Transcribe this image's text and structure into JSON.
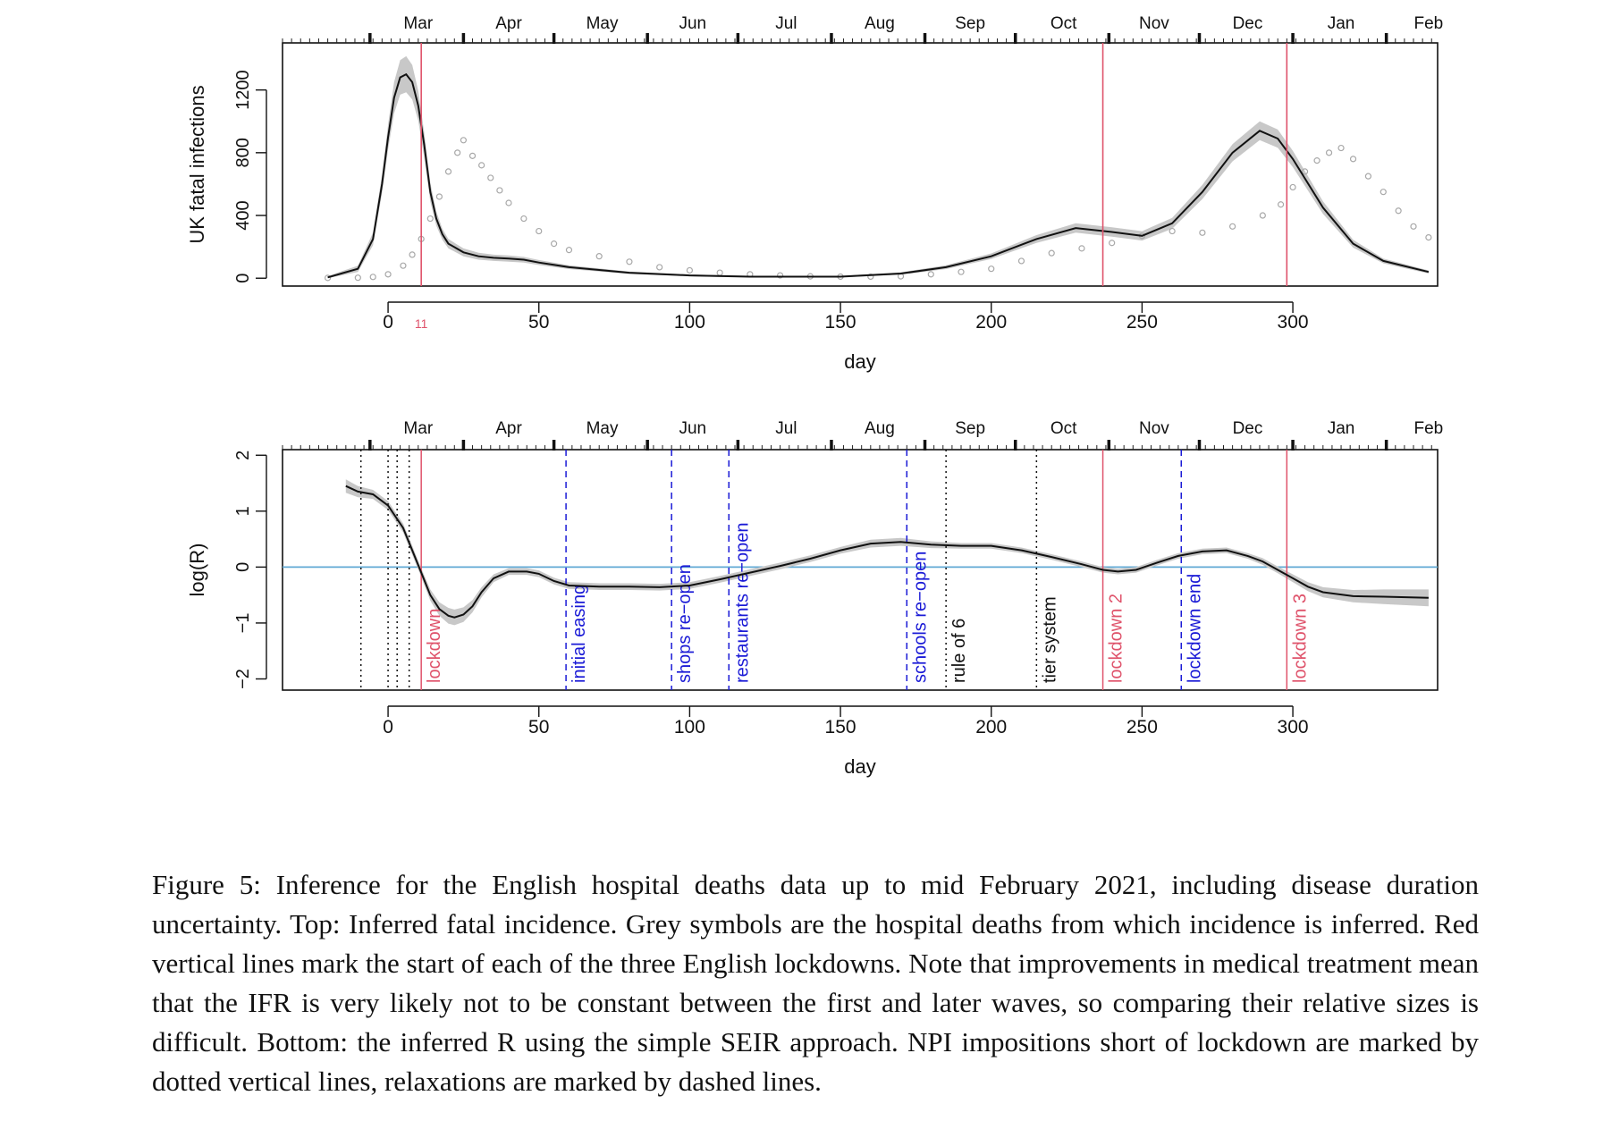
{
  "chart_data": [
    {
      "type": "line",
      "title": "",
      "xlabel": "day",
      "ylabel": "UK fatal infections",
      "xlim": [
        -35,
        348
      ],
      "ylim": [
        -50,
        1500
      ],
      "x_ticks": [
        "0",
        "50",
        "100",
        "150",
        "200",
        "250",
        "300"
      ],
      "y_ticks": [
        "0",
        "400",
        "800",
        "1200"
      ],
      "months": [
        "Mar",
        "Apr",
        "May",
        "Jun",
        "Jul",
        "Aug",
        "Sep",
        "Oct",
        "Nov",
        "Dec",
        "Jan",
        "Feb"
      ],
      "lockdown_day_label": "11",
      "lockdown_days": [
        11,
        237,
        298
      ],
      "series": [
        {
          "name": "Inferred fatal incidence",
          "x": [
            -20,
            -10,
            -5,
            -2,
            0,
            2,
            4,
            6,
            8,
            10,
            12,
            14,
            16,
            18,
            20,
            25,
            30,
            35,
            40,
            45,
            50,
            60,
            80,
            100,
            120,
            150,
            170,
            185,
            200,
            215,
            228,
            240,
            250,
            260,
            270,
            280,
            289,
            295,
            300,
            310,
            320,
            330,
            345
          ],
          "y": [
            5,
            60,
            250,
            600,
            900,
            1150,
            1280,
            1300,
            1250,
            1100,
            850,
            550,
            380,
            280,
            220,
            165,
            140,
            130,
            125,
            118,
            100,
            70,
            35,
            18,
            10,
            10,
            30,
            70,
            140,
            250,
            320,
            295,
            270,
            350,
            550,
            800,
            940,
            890,
            760,
            450,
            220,
            110,
            40
          ],
          "band": [
            8,
            20,
            40,
            60,
            80,
            100,
            110,
            115,
            110,
            95,
            80,
            60,
            45,
            35,
            30,
            25,
            22,
            20,
            20,
            18,
            16,
            12,
            8,
            6,
            5,
            5,
            8,
            12,
            18,
            25,
            30,
            30,
            30,
            35,
            45,
            55,
            60,
            58,
            52,
            40,
            25,
            15,
            10
          ]
        },
        {
          "name": "Hospital deaths",
          "x": [
            -20,
            -10,
            -5,
            0,
            5,
            8,
            11,
            14,
            17,
            20,
            23,
            25,
            28,
            31,
            34,
            37,
            40,
            45,
            50,
            55,
            60,
            70,
            80,
            90,
            100,
            110,
            120,
            130,
            140,
            150,
            160,
            170,
            180,
            190,
            200,
            210,
            220,
            230,
            240,
            250,
            260,
            270,
            280,
            290,
            296,
            300,
            304,
            308,
            312,
            316,
            320,
            325,
            330,
            335,
            340,
            345
          ],
          "y": [
            2,
            3,
            8,
            25,
            80,
            150,
            250,
            380,
            520,
            680,
            800,
            880,
            780,
            720,
            640,
            560,
            480,
            380,
            300,
            220,
            180,
            140,
            105,
            70,
            50,
            35,
            25,
            18,
            12,
            10,
            10,
            12,
            25,
            40,
            60,
            110,
            160,
            190,
            225,
            270,
            300,
            290,
            330,
            400,
            470,
            580,
            680,
            750,
            800,
            830,
            760,
            650,
            550,
            430,
            330,
            260
          ]
        }
      ]
    },
    {
      "type": "line",
      "title": "",
      "xlabel": "day",
      "ylabel": "log(R)",
      "xlim": [
        -35,
        348
      ],
      "ylim": [
        -2.2,
        2.1
      ],
      "x_ticks": [
        "0",
        "50",
        "100",
        "150",
        "200",
        "250",
        "300"
      ],
      "y_ticks": [
        "−2",
        "−1",
        "0",
        "1",
        "2"
      ],
      "months": [
        "Mar",
        "Apr",
        "May",
        "Jun",
        "Jul",
        "Aug",
        "Sep",
        "Oct",
        "Nov",
        "Dec",
        "Jan",
        "Feb"
      ],
      "reference_line_y": 0,
      "series": [
        {
          "name": "log(R)",
          "x": [
            -14,
            -10,
            -5,
            0,
            5,
            8,
            11,
            14,
            17,
            20,
            22,
            25,
            28,
            31,
            35,
            40,
            46,
            50,
            55,
            60,
            70,
            80,
            90,
            100,
            110,
            120,
            130,
            140,
            150,
            160,
            170,
            180,
            190,
            200,
            210,
            220,
            230,
            237,
            242,
            248,
            255,
            262,
            270,
            278,
            285,
            290,
            295,
            300,
            305,
            310,
            320,
            330,
            345
          ],
          "y": [
            1.45,
            1.35,
            1.3,
            1.1,
            0.7,
            0.3,
            -0.1,
            -0.5,
            -0.75,
            -0.87,
            -0.9,
            -0.85,
            -0.7,
            -0.45,
            -0.2,
            -0.08,
            -0.08,
            -0.12,
            -0.25,
            -0.33,
            -0.35,
            -0.35,
            -0.36,
            -0.33,
            -0.22,
            -0.1,
            0.02,
            0.15,
            0.3,
            0.42,
            0.45,
            0.4,
            0.38,
            0.38,
            0.3,
            0.18,
            0.05,
            -0.05,
            -0.08,
            -0.05,
            0.08,
            0.2,
            0.28,
            0.3,
            0.2,
            0.1,
            -0.05,
            -0.2,
            -0.35,
            -0.45,
            -0.52,
            -0.53,
            -0.55
          ],
          "band": [
            0.12,
            0.1,
            0.08,
            0.08,
            0.08,
            0.08,
            0.08,
            0.1,
            0.12,
            0.14,
            0.14,
            0.13,
            0.11,
            0.09,
            0.07,
            0.06,
            0.06,
            0.06,
            0.06,
            0.06,
            0.06,
            0.06,
            0.06,
            0.06,
            0.06,
            0.06,
            0.06,
            0.06,
            0.06,
            0.07,
            0.07,
            0.06,
            0.05,
            0.05,
            0.05,
            0.05,
            0.05,
            0.05,
            0.05,
            0.05,
            0.05,
            0.05,
            0.05,
            0.05,
            0.05,
            0.06,
            0.06,
            0.07,
            0.08,
            0.09,
            0.11,
            0.13,
            0.15
          ]
        }
      ],
      "events": [
        {
          "day": -9,
          "label": "",
          "style": "dotted",
          "color": "black"
        },
        {
          "day": 0,
          "label": "",
          "style": "dotted",
          "color": "black"
        },
        {
          "day": 3,
          "label": "",
          "style": "dotted",
          "color": "black"
        },
        {
          "day": 7,
          "label": "",
          "style": "dotted",
          "color": "black"
        },
        {
          "day": 11,
          "label": "lockdown",
          "style": "solid",
          "color": "red"
        },
        {
          "day": 59,
          "label": "initial easing",
          "style": "dashed",
          "color": "blue"
        },
        {
          "day": 94,
          "label": "shops re−open",
          "style": "dashed",
          "color": "blue"
        },
        {
          "day": 113,
          "label": "restaurants re−open",
          "style": "dashed",
          "color": "blue"
        },
        {
          "day": 172,
          "label": "schools re−open",
          "style": "dashed",
          "color": "blue"
        },
        {
          "day": 185,
          "label": "rule of 6",
          "style": "dotted",
          "color": "black"
        },
        {
          "day": 215,
          "label": "tier system",
          "style": "dotted",
          "color": "black"
        },
        {
          "day": 237,
          "label": "lockdown 2",
          "style": "solid",
          "color": "red"
        },
        {
          "day": 263,
          "label": "lockdown end",
          "style": "dashed",
          "color": "blue"
        },
        {
          "day": 298,
          "label": "lockdown 3",
          "style": "solid",
          "color": "red"
        }
      ]
    }
  ],
  "caption": "Figure 5: Inference for the English hospital deaths data up to mid February 2021, including disease duration uncertainty. Top: Inferred fatal incidence. Grey symbols are the hospital deaths from which incidence is inferred. Red vertical lines mark the start of each of the three English lockdowns. Note that improvements in medical treatment mean that the IFR is very likely not to be constant between the first and later waves, so comparing their relative sizes is difficult. Bottom: the inferred R using the simple SEIR approach. NPI impositions short of lockdown are marked by dotted vertical lines, relaxations are marked by dashed lines.",
  "colors": {
    "lockdown": "#df536b",
    "relaxation": "#1a1ad6",
    "reference": "#61a9d4",
    "band": "#c8c8c8",
    "points": "#a8a8a8"
  }
}
